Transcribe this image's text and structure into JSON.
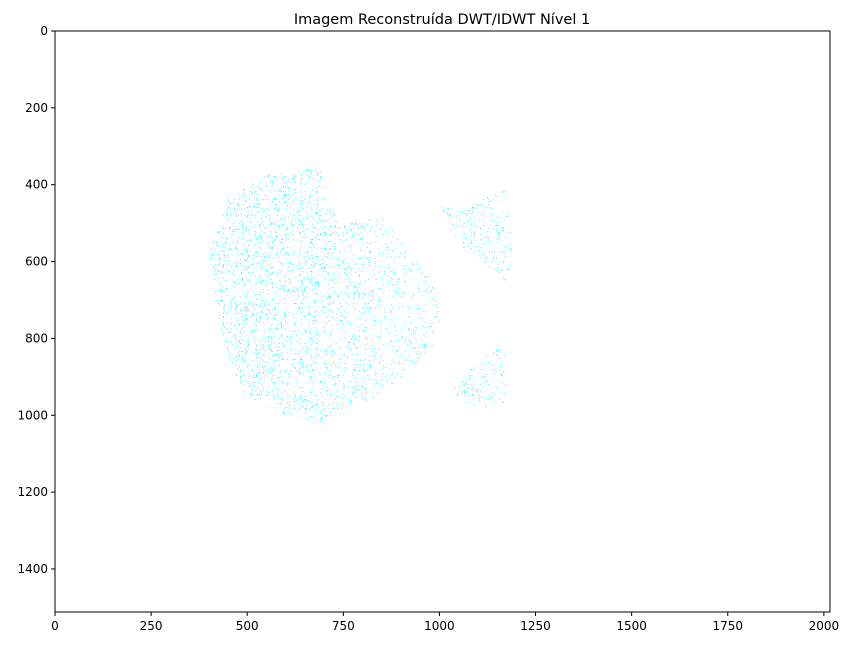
{
  "chart_data": {
    "type": "image",
    "title": "Imagem Reconstruída DWT/IDWT Nível 1",
    "xlabel": "",
    "ylabel": "",
    "xlim": [
      0,
      2016
    ],
    "ylim": [
      1512,
      0
    ],
    "grid": false,
    "x_ticks": [
      0,
      250,
      500,
      750,
      1000,
      1250,
      1500,
      1750,
      2000
    ],
    "y_ticks": [
      0,
      200,
      400,
      600,
      800,
      1000,
      1200,
      1400
    ],
    "point_color": "#00ffff",
    "background_color": "#ffffff",
    "regions": [
      {
        "name": "main-body",
        "polygon": [
          [
            400,
            590
          ],
          [
            430,
            480
          ],
          [
            450,
            430
          ],
          [
            500,
            400
          ],
          [
            560,
            370
          ],
          [
            620,
            360
          ],
          [
            690,
            355
          ],
          [
            700,
            430
          ],
          [
            750,
            500
          ],
          [
            850,
            480
          ],
          [
            920,
            560
          ],
          [
            990,
            660
          ],
          [
            1000,
            750
          ],
          [
            980,
            820
          ],
          [
            900,
            900
          ],
          [
            820,
            960
          ],
          [
            720,
            990
          ],
          [
            680,
            1020
          ],
          [
            600,
            1000
          ],
          [
            520,
            960
          ],
          [
            470,
            900
          ],
          [
            440,
            820
          ],
          [
            420,
            730
          ],
          [
            410,
            640
          ]
        ]
      },
      {
        "name": "upper-wing",
        "polygon": [
          [
            1000,
            455
          ],
          [
            1060,
            470
          ],
          [
            1120,
            430
          ],
          [
            1170,
            410
          ],
          [
            1185,
            520
          ],
          [
            1190,
            680
          ],
          [
            1160,
            640
          ],
          [
            1110,
            600
          ],
          [
            1060,
            560
          ],
          [
            1030,
            520
          ]
        ]
      },
      {
        "name": "lower-wing",
        "polygon": [
          [
            1030,
            940
          ],
          [
            1080,
            880
          ],
          [
            1130,
            840
          ],
          [
            1170,
            810
          ],
          [
            1175,
            900
          ],
          [
            1170,
            990
          ],
          [
            1120,
            985
          ],
          [
            1070,
            965
          ]
        ]
      }
    ]
  }
}
